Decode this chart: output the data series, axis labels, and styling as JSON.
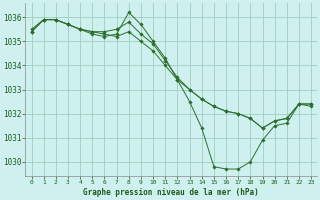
{
  "background_color": "#cef0ee",
  "grid_color": "#9ecfbe",
  "line_color": "#2d6e2d",
  "marker_color": "#2d6e2d",
  "xlabel": "Graphe pression niveau de la mer (hPa)",
  "xlabel_color": "#1a5c1a",
  "ylim": [
    1029.4,
    1036.6
  ],
  "xlim": [
    -0.5,
    23.5
  ],
  "yticks": [
    1030,
    1031,
    1032,
    1033,
    1034,
    1035,
    1036
  ],
  "xticks": [
    0,
    1,
    2,
    3,
    4,
    5,
    6,
    7,
    8,
    9,
    10,
    11,
    12,
    13,
    14,
    15,
    16,
    17,
    18,
    19,
    20,
    21,
    22,
    23
  ],
  "series": [
    [
      1035.5,
      1035.9,
      1035.9,
      1035.7,
      1035.5,
      1035.3,
      1035.2,
      1035.3,
      1036.2,
      1035.7,
      1035.0,
      1034.3,
      1033.4,
      1032.5,
      1031.4,
      1029.8,
      1029.7,
      1029.7,
      1030.0,
      1030.9,
      1031.5,
      1031.6,
      1032.4,
      1032.3
    ],
    [
      1035.4,
      1035.9,
      1035.9,
      1035.7,
      1035.5,
      1035.4,
      1035.4,
      1035.5,
      1035.8,
      1035.3,
      1034.9,
      1034.2,
      1033.5,
      1033.0,
      1032.6,
      1032.3,
      1032.1,
      1032.0,
      1031.8,
      1031.4,
      1031.7,
      1031.8,
      1032.4,
      1032.4
    ],
    [
      1035.4,
      1035.9,
      1035.9,
      1035.7,
      1035.5,
      1035.4,
      1035.3,
      1035.2,
      1035.4,
      1035.0,
      1034.6,
      1034.0,
      1033.4,
      1033.0,
      1032.6,
      1032.3,
      1032.1,
      1032.0,
      1031.8,
      1031.4,
      1031.7,
      1031.8,
      1032.4,
      1032.4
    ]
  ]
}
